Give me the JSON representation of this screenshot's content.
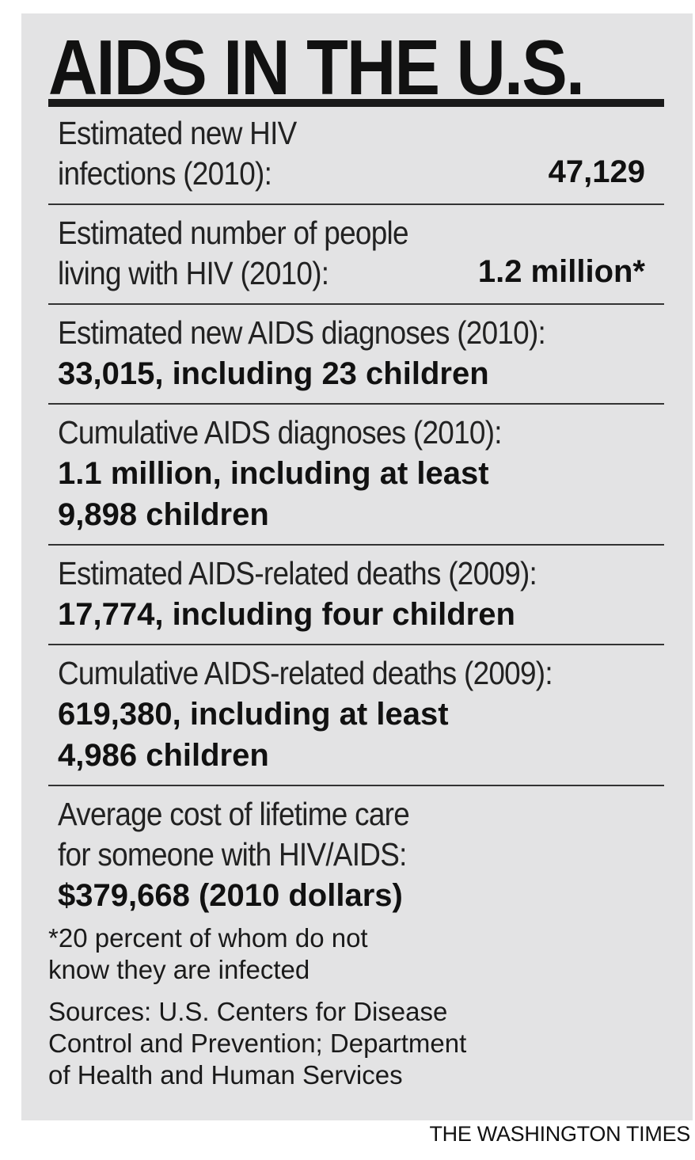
{
  "title": "AIDS IN THE U.S.",
  "rows": [
    {
      "label_lines": [
        "Estimated new HIV",
        "infections (2010):"
      ],
      "value": "47,129"
    },
    {
      "label_lines": [
        "Estimated number of people",
        "living with HIV (2010):"
      ],
      "value": "1.2 million*"
    },
    {
      "label_lines": [
        "Estimated new AIDS diagnoses (2010):"
      ],
      "value_lines": [
        "33,015, including 23 children"
      ]
    },
    {
      "label_lines": [
        "Cumulative AIDS diagnoses (2010):"
      ],
      "value_lines": [
        "1.1 million, including at least",
        "9,898 children"
      ]
    },
    {
      "label_lines": [
        "Estimated AIDS-related deaths (2009):"
      ],
      "value_lines": [
        "17,774, including four children"
      ]
    },
    {
      "label_lines": [
        "Cumulative AIDS-related deaths (2009):"
      ],
      "value_lines": [
        "619,380, including at least",
        "4,986 children"
      ]
    },
    {
      "label_lines": [
        "Average cost of lifetime care",
        "for someone with HIV/AIDS:"
      ],
      "value_lines": [
        "$379,668 (2010 dollars)"
      ]
    }
  ],
  "footnote_lines": [
    "*20 percent of whom do not",
    "know they are infected"
  ],
  "sources_lines": [
    "Sources: U.S. Centers for Disease",
    "Control and Prevention; Department",
    "of Health and Human Services"
  ],
  "credit": "THE WASHINGTON TIMES"
}
